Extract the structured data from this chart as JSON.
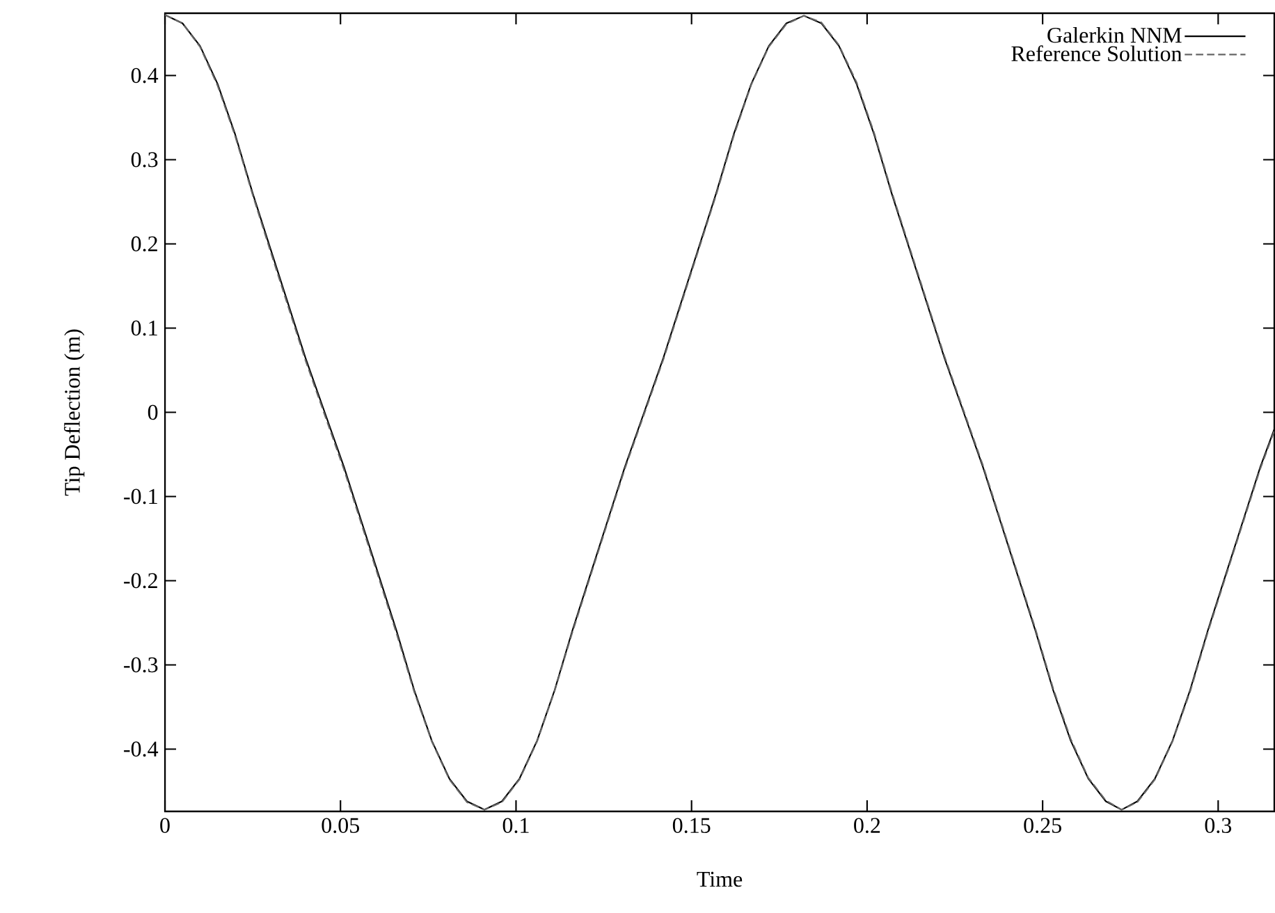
{
  "chart_data": {
    "type": "line",
    "xlabel": "Time",
    "ylabel": "Tip Deflection (m)",
    "x": [
      0,
      0.005,
      0.01,
      0.015,
      0.02,
      0.025,
      0.03,
      0.035,
      0.04,
      0.0455,
      0.051,
      0.056,
      0.061,
      0.066,
      0.071,
      0.076,
      0.081,
      0.086,
      0.091,
      0.096,
      0.101,
      0.106,
      0.111,
      0.116,
      0.121,
      0.126,
      0.131,
      0.1365,
      0.142,
      0.147,
      0.152,
      0.157,
      0.162,
      0.167,
      0.172,
      0.177,
      0.182,
      0.187,
      0.192,
      0.197,
      0.202,
      0.207,
      0.212,
      0.217,
      0.222,
      0.2275,
      0.233,
      0.238,
      0.243,
      0.248,
      0.253,
      0.258,
      0.263,
      0.268,
      0.2725,
      0.277,
      0.282,
      0.287,
      0.292,
      0.297,
      0.302,
      0.307,
      0.312,
      0.316
    ],
    "series": [
      {
        "name": "Galerkin NNM",
        "color": "#000000",
        "line_style": "solid",
        "values": [
          0.472,
          0.462,
          0.435,
          0.39,
          0.33,
          0.26,
          0.195,
          0.13,
          0.065,
          0,
          -0.065,
          -0.13,
          -0.195,
          -0.26,
          -0.33,
          -0.39,
          -0.435,
          -0.462,
          -0.472,
          -0.462,
          -0.435,
          -0.39,
          -0.33,
          -0.26,
          -0.195,
          -0.13,
          -0.065,
          0,
          0.065,
          0.13,
          0.195,
          0.26,
          0.33,
          0.39,
          0.435,
          0.462,
          0.471,
          0.462,
          0.435,
          0.39,
          0.33,
          0.26,
          0.195,
          0.13,
          0.065,
          0,
          -0.065,
          -0.13,
          -0.195,
          -0.26,
          -0.33,
          -0.39,
          -0.435,
          -0.462,
          -0.472,
          -0.462,
          -0.435,
          -0.39,
          -0.33,
          -0.26,
          -0.195,
          -0.13,
          -0.065,
          -0.02
        ]
      },
      {
        "name": "Reference Solution",
        "color": "#666666",
        "line_style": "dashed",
        "values": [
          0.472,
          0.462,
          0.434,
          0.388,
          0.328,
          0.258,
          0.192,
          0.127,
          0.062,
          -0.003,
          -0.068,
          -0.133,
          -0.198,
          -0.263,
          -0.332,
          -0.391,
          -0.436,
          -0.463,
          -0.472,
          -0.463,
          -0.436,
          -0.391,
          -0.331,
          -0.262,
          -0.197,
          -0.132,
          -0.067,
          -0.002,
          0.063,
          0.128,
          0.193,
          0.258,
          0.328,
          0.389,
          0.434,
          0.461,
          0.471,
          0.463,
          0.436,
          0.392,
          0.332,
          0.262,
          0.197,
          0.132,
          0.067,
          0.002,
          -0.063,
          -0.128,
          -0.193,
          -0.258,
          -0.328,
          -0.388,
          -0.434,
          -0.461,
          -0.472,
          -0.463,
          -0.436,
          -0.391,
          -0.332,
          -0.262,
          -0.197,
          -0.132,
          -0.067,
          -0.022
        ]
      }
    ],
    "xlim": [
      0,
      0.316
    ],
    "ylim": [
      -0.474,
      0.474
    ],
    "xticks": [
      0,
      0.05,
      0.1,
      0.15,
      0.2,
      0.25,
      0.3
    ],
    "yticks": [
      -0.4,
      -0.3,
      -0.2,
      -0.1,
      0,
      0.1,
      0.2,
      0.3,
      0.4
    ],
    "legend": "top right",
    "grid": false,
    "marker": "none"
  }
}
